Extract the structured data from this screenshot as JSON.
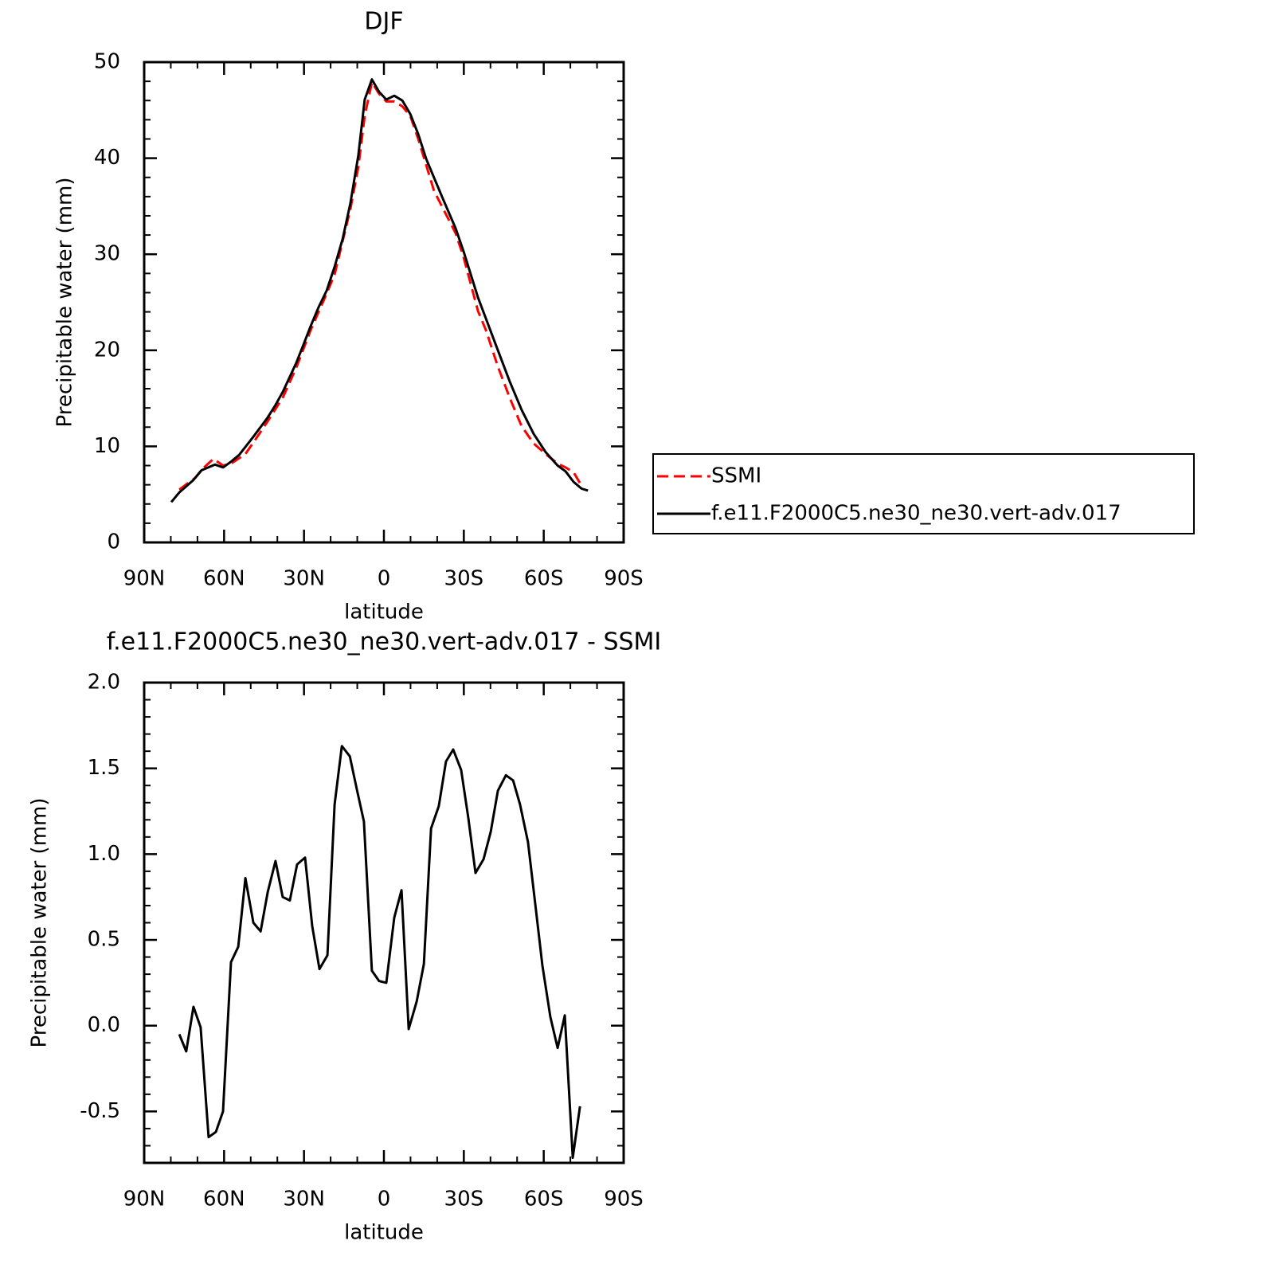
{
  "chart_data": [
    {
      "type": "line",
      "title": "DJF",
      "xlabel": "latitude",
      "ylabel": "Precipitable water (mm)",
      "xlim": [
        90,
        -90
      ],
      "ylim": [
        0,
        50
      ],
      "xticks": [
        {
          "value": 90,
          "label": "90N"
        },
        {
          "value": 60,
          "label": "60N"
        },
        {
          "value": 30,
          "label": "30N"
        },
        0,
        {
          "value": -30,
          "label": "30S"
        },
        {
          "value": -60,
          "label": "60S"
        },
        {
          "value": -90,
          "label": "90S"
        }
      ],
      "yticks": [
        0,
        10,
        20,
        30,
        40,
        50
      ],
      "legend": "right",
      "series": [
        {
          "name": "SSMI",
          "color": "#ff0000",
          "dashed": true,
          "x": [
            76.8,
            73.9,
            70.9,
            67.9,
            64.0,
            60.4,
            57.4,
            52.0,
            49.0,
            43.9,
            37.9,
            32.9,
            27.5,
            21.5,
            18.5,
            12.6,
            9.6,
            7.2,
            4.5,
            1.8,
            -0.9,
            -3.9,
            -6.9,
            -9.9,
            -12.9,
            -18.8,
            -26.9,
            -29.9,
            -35.3,
            -38.3,
            -42.8,
            -47.3,
            -51.7,
            -56.2,
            -60.7,
            -65.2,
            -68.2,
            -71.2,
            -74.2
          ],
          "values": [
            5.5,
            6.1,
            6.7,
            7.7,
            8.7,
            8.0,
            8.2,
            9.2,
            10.4,
            12.5,
            15.1,
            18.2,
            22.1,
            25.9,
            27.9,
            34.7,
            39.1,
            44.4,
            47.9,
            46.7,
            45.9,
            45.9,
            45.4,
            44.4,
            42.0,
            36.6,
            32.2,
            29.7,
            24.1,
            22.1,
            18.3,
            15.0,
            12.1,
            10.3,
            9.2,
            8.2,
            7.8,
            7.3,
            5.9
          ]
        },
        {
          "name": "f.e11.F2000C5.ne30_ne30.vert-adv.017",
          "color": "#000000",
          "dashed": false,
          "x": [
            79.8,
            76.8,
            71.5,
            68.5,
            63.4,
            60.4,
            57.4,
            54.4,
            49.0,
            43.9,
            40.9,
            37.9,
            32.9,
            29.9,
            27.5,
            24.5,
            21.5,
            18.5,
            15.5,
            12.6,
            9.6,
            7.2,
            4.5,
            1.8,
            -0.9,
            -3.9,
            -6.9,
            -9.9,
            -12.9,
            -15.9,
            -21.8,
            -26.9,
            -29.9,
            -35.3,
            -38.3,
            -42.8,
            -47.3,
            -51.7,
            -56.2,
            -60.7,
            -65.2,
            -68.2,
            -71.2,
            -74.2,
            -76.6
          ],
          "values": [
            4.2,
            5.2,
            6.5,
            7.5,
            8.1,
            7.8,
            8.4,
            9.1,
            11.0,
            12.9,
            14.2,
            15.7,
            18.7,
            20.8,
            22.5,
            24.5,
            26.2,
            28.7,
            31.6,
            35.3,
            40.3,
            46.1,
            48.2,
            46.9,
            46.1,
            46.5,
            46.0,
            44.6,
            42.5,
            39.9,
            36.0,
            32.7,
            30.3,
            25.5,
            23.3,
            20.0,
            16.7,
            13.8,
            11.3,
            9.4,
            8.0,
            7.4,
            6.3,
            5.6,
            5.4
          ]
        }
      ]
    },
    {
      "type": "line",
      "title": "f.e11.F2000C5.ne30_ne30.vert-adv.017 - SSMI",
      "xlabel": "latitude",
      "ylabel": "Precipitable water (mm)",
      "xlim": [
        90,
        -90
      ],
      "ylim": [
        -0.8,
        2.0
      ],
      "xticks": [
        {
          "value": 90,
          "label": "90N"
        },
        {
          "value": 60,
          "label": "60N"
        },
        {
          "value": 30,
          "label": "30N"
        },
        0,
        {
          "value": -30,
          "label": "30S"
        },
        {
          "value": -60,
          "label": "60S"
        },
        {
          "value": -90,
          "label": "90S"
        }
      ],
      "yticks": [
        -0.5,
        {
          "value": 0,
          "label": "0.0"
        },
        0.5,
        {
          "value": 1,
          "label": "1.0"
        },
        1.5,
        {
          "value": 2,
          "label": "2.0"
        }
      ],
      "series": [
        {
          "color": "#000000",
          "dashed": false,
          "x": [
            76.8,
            74.2,
            71.5,
            68.8,
            65.8,
            63.1,
            60.4,
            57.4,
            54.7,
            52.0,
            49.0,
            46.3,
            43.6,
            40.7,
            38.0,
            35.3,
            32.6,
            29.6,
            26.9,
            24.2,
            21.2,
            18.5,
            15.8,
            12.8,
            10.2,
            7.5,
            4.5,
            1.8,
            -0.9,
            -3.9,
            -6.6,
            -9.3,
            -12.3,
            -15.0,
            -17.7,
            -20.6,
            -23.3,
            -26.0,
            -29.0,
            -31.7,
            -34.4,
            -37.4,
            -40.1,
            -42.8,
            -45.8,
            -48.5,
            -51.1,
            -54.1,
            -56.8,
            -59.5,
            -62.5,
            -65.2,
            -67.9,
            -70.9,
            -73.6
          ],
          "values": [
            -0.05,
            -0.15,
            0.11,
            -0.01,
            -0.65,
            -0.62,
            -0.5,
            0.37,
            0.46,
            0.86,
            0.6,
            0.55,
            0.78,
            0.96,
            0.75,
            0.73,
            0.94,
            0.98,
            0.58,
            0.33,
            0.41,
            1.29,
            1.63,
            1.57,
            1.38,
            1.19,
            0.32,
            0.26,
            0.25,
            0.63,
            0.79,
            -0.02,
            0.14,
            0.36,
            1.15,
            1.28,
            1.54,
            1.61,
            1.49,
            1.21,
            0.89,
            0.97,
            1.13,
            1.37,
            1.46,
            1.43,
            1.29,
            1.07,
            0.71,
            0.35,
            0.05,
            -0.13,
            0.06,
            -0.77,
            -0.47
          ]
        }
      ]
    }
  ]
}
